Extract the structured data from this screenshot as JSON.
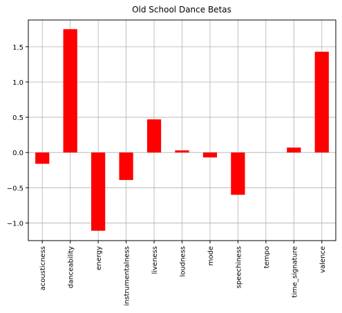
{
  "chart_data": {
    "type": "bar",
    "title": "Old School Dance Betas",
    "xlabel": "",
    "ylabel": "",
    "categories": [
      "acousticness",
      "danceability",
      "energy",
      "instrumentalness",
      "liveness",
      "loudness",
      "mode",
      "speechiness",
      "tempo",
      "time_signature",
      "valence"
    ],
    "values": [
      -0.16,
      1.75,
      -1.11,
      -0.39,
      0.47,
      0.03,
      -0.07,
      -0.6,
      0.0,
      0.07,
      1.43
    ],
    "ylim": [
      -1.25,
      1.88
    ],
    "yticks": [
      -1.0,
      -0.5,
      0.0,
      0.5,
      1.0,
      1.5
    ],
    "ytick_labels": [
      "−1.0",
      "−0.5",
      "0.0",
      "0.5",
      "1.0",
      "1.5"
    ],
    "grid": true,
    "bar_color": "#ff0000"
  }
}
